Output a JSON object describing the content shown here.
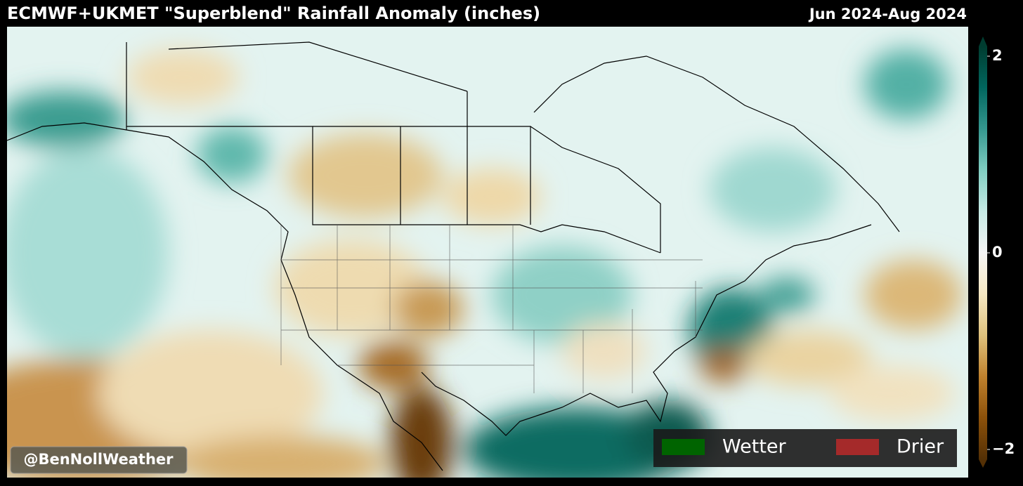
{
  "header": {
    "title": "ECMWF+UKMET \"Superblend\" Rainfall Anomaly (inches)",
    "period": "Jun 2024-Aug 2024"
  },
  "colorbar": {
    "lim": [
      -2,
      2
    ],
    "ticks": [
      2,
      0,
      {
        "value": -2,
        "label": "−2"
      }
    ],
    "colors": [
      "#543005",
      "#8c510a",
      "#bf812d",
      "#dfc27d",
      "#f6e8c3",
      "#f5f5f5",
      "#c7eae5",
      "#80cdc1",
      "#35978f",
      "#01665e",
      "#003c30"
    ]
  },
  "legend": {
    "items": [
      {
        "label": "Wetter",
        "color": "#006400"
      },
      {
        "label": "Drier",
        "color": "#a52a2a"
      }
    ]
  },
  "watermark": "@BenNollWeather"
}
